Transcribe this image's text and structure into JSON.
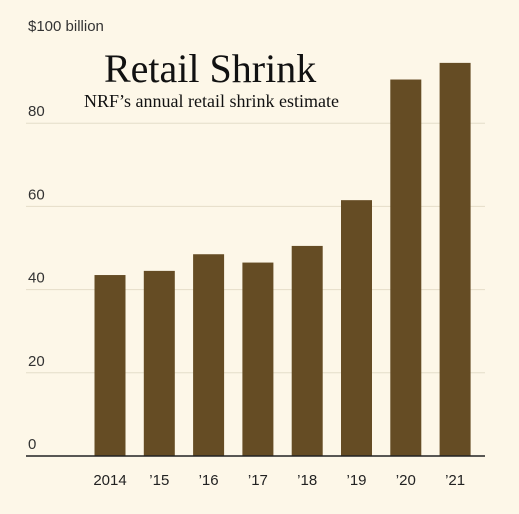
{
  "chart_data": {
    "type": "bar",
    "title": "Retail Shrink",
    "subtitle": "NRF’s annual retail shrink estimate",
    "y_unit_label": "$100 billion",
    "categories": [
      "2014",
      "’15",
      "’16",
      "’17",
      "’18",
      "’19",
      "’20",
      "’21"
    ],
    "values": [
      43.5,
      44.5,
      48.5,
      46.5,
      50.5,
      61.5,
      90.5,
      94.5
    ],
    "ylim": [
      0,
      100
    ],
    "yticks": [
      0,
      20,
      40,
      60,
      80
    ],
    "ytick_labels": [
      "0",
      "20",
      "40",
      "60",
      "80"
    ],
    "grid": true,
    "colors": {
      "bar": "#654c24",
      "background": "#fdf7e8",
      "gridline": "#e4ddc9",
      "axis": "#222222"
    }
  }
}
